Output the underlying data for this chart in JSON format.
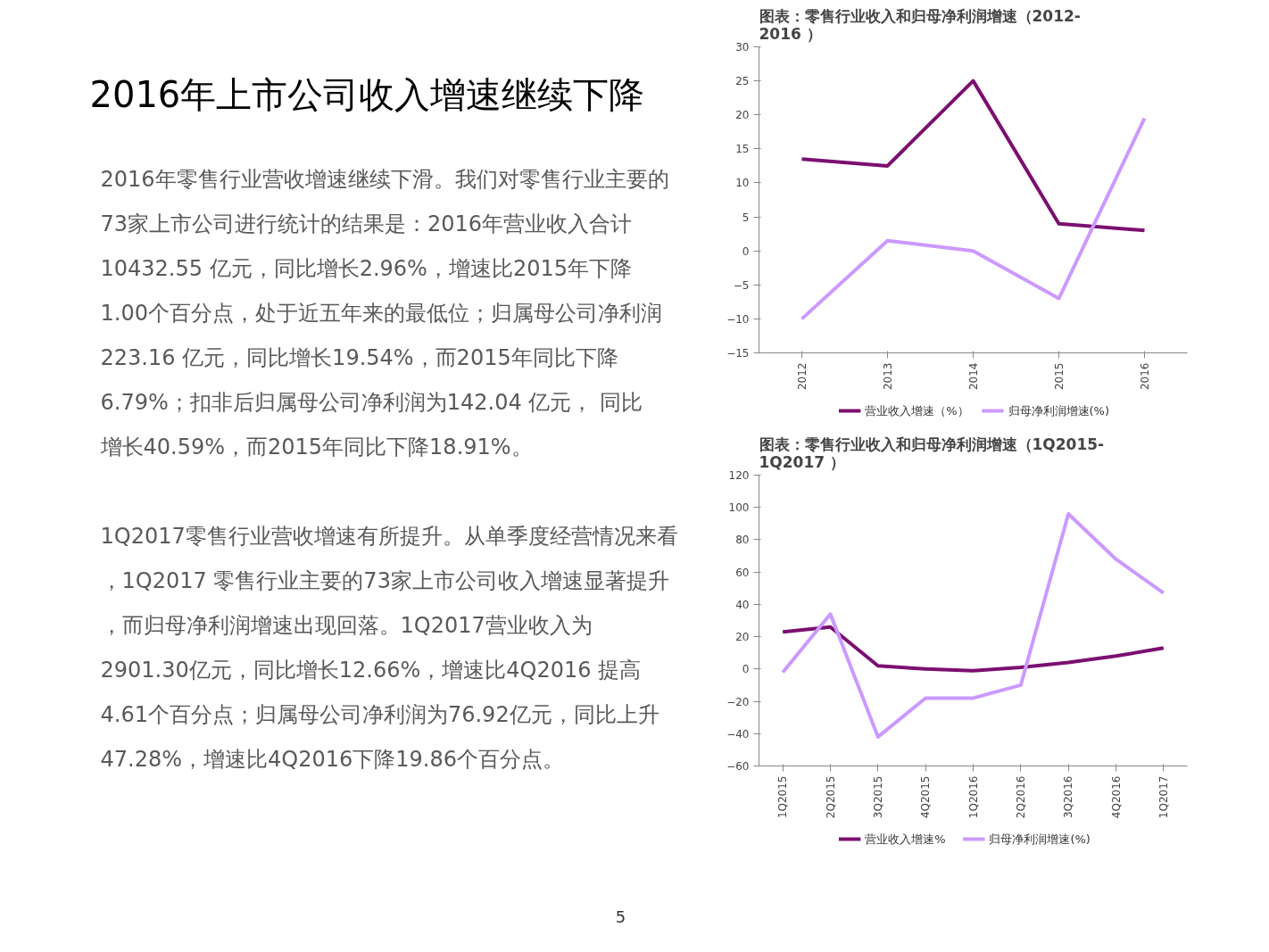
{
  "chart_data": [
    {
      "type": "other",
      "title": "2016年上市公司收入增速继续下降",
      "annotations": [
        "2016年零售行业营收增速继续下滑。我们对零售行业主要的73家上市公司进行统计的结果是：2016年营业收入合计10432.55 亿元，同比增长2.96%，增速比2015年下降1.00个百分点，处于近五年来的最低位；归属母公司净利润223.16 亿元，同比增长19.54%，而2015年同比下降6.79%；扣非后归属母公司净利润为142.04 亿元， 同比增长40.59%，而2015年同比下降18.91%。",
        "1Q2017零售行业营收增速有所提升。从单季度经营情况来看，1Q2017 零售行业主要的73家上市公司收入增速显著提升，而归母净利润增速出现回落。1Q2017营业收入为2901.30亿元，同比增长12.66%，增速比4Q2016 提高4.61个百分点；归属母公司净利润为76.92亿元，同比上升47.28%，增速比4Q2016下降19.86个百分点。",
        "5"
      ]
    },
    {
      "type": "line",
      "title": "图表：零售行业收入和归母净利润增速（2012-2016 ）",
      "categories": [
        "2012",
        "2013",
        "2014",
        "2015",
        "2016"
      ],
      "series": [
        {
          "name": "营业收入增速（%）",
          "color": "#7b1070",
          "values": [
            13.5,
            12.5,
            25,
            4,
            3
          ]
        },
        {
          "name": "归母净利润增速(%)",
          "color": "#cc99ff",
          "values": [
            -10,
            1.5,
            0,
            -7,
            19.5
          ]
        }
      ],
      "ylim": [
        -15,
        30
      ],
      "yticks": [
        -15,
        -10,
        -5,
        0,
        5,
        10,
        15,
        20,
        25,
        30
      ],
      "grid": false,
      "legend": "bottom",
      "marker": "none",
      "line_style": "solid"
    },
    {
      "type": "line",
      "title": "图表：零售行业收入和归母净利润增速（1Q2015-1Q2017 ）",
      "categories": [
        "1Q2015",
        "2Q2015",
        "3Q2015",
        "4Q2015",
        "1Q2016",
        "2Q2016",
        "3Q2016",
        "4Q2016",
        "1Q2017"
      ],
      "series": [
        {
          "name": "营业收入增速%",
          "color": "#7b1070",
          "values": [
            23,
            26,
            2,
            0,
            -1,
            1,
            4,
            8,
            13
          ]
        },
        {
          "name": "归母净利润增速(%)",
          "color": "#cc99ff",
          "values": [
            -2,
            34,
            -42,
            -18,
            -18,
            -10,
            96,
            68,
            47
          ]
        }
      ],
      "ylim": [
        -60,
        120
      ],
      "yticks": [
        -60,
        -40,
        -20,
        0,
        20,
        40,
        60,
        80,
        100,
        120
      ],
      "grid": false,
      "legend": "bottom",
      "marker": "none",
      "line_style": "solid"
    }
  ]
}
